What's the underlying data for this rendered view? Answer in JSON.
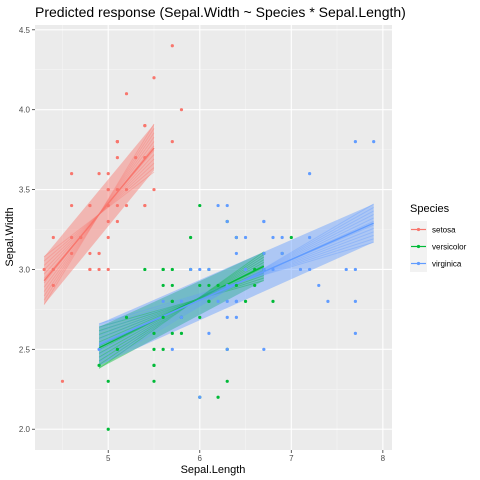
{
  "chart_data": {
    "type": "scatter",
    "title": "Predicted response (Sepal.Width ~ Species * Sepal.Length)",
    "xlabel": "Sepal.Length",
    "ylabel": "Sepal.Width",
    "xlim": [
      4.2,
      8.1
    ],
    "ylim": [
      1.87,
      4.53
    ],
    "x_ticks": [
      5,
      6,
      7,
      8
    ],
    "y_ticks": [
      2.0,
      2.5,
      3.0,
      3.5,
      4.0,
      4.5
    ],
    "x_tick_labels": [
      "5",
      "6",
      "7",
      "8"
    ],
    "y_tick_labels": [
      "2.0",
      "2.5",
      "3.0",
      "3.5",
      "4.0",
      "4.5"
    ],
    "grid": true,
    "legend": {
      "title": "Species",
      "position": "right"
    },
    "series": [
      {
        "name": "setosa",
        "color": "#F8766D",
        "fit": {
          "x": [
            4.3,
            5.5
          ],
          "y": [
            2.93,
            3.76
          ],
          "band_low": [
            2.78,
            3.62
          ],
          "band_high": [
            3.08,
            3.91
          ]
        },
        "points": [
          [
            5.1,
            3.5
          ],
          [
            4.9,
            3.0
          ],
          [
            4.7,
            3.2
          ],
          [
            4.6,
            3.1
          ],
          [
            5.0,
            3.6
          ],
          [
            5.4,
            3.9
          ],
          [
            4.6,
            3.4
          ],
          [
            5.0,
            3.4
          ],
          [
            4.4,
            2.9
          ],
          [
            4.9,
            3.1
          ],
          [
            5.4,
            3.7
          ],
          [
            4.8,
            3.4
          ],
          [
            4.8,
            3.0
          ],
          [
            4.3,
            3.0
          ],
          [
            5.8,
            4.0
          ],
          [
            5.7,
            4.4
          ],
          [
            5.4,
            3.9
          ],
          [
            5.1,
            3.5
          ],
          [
            5.7,
            3.8
          ],
          [
            5.1,
            3.8
          ],
          [
            5.4,
            3.4
          ],
          [
            5.1,
            3.7
          ],
          [
            4.6,
            3.6
          ],
          [
            5.1,
            3.3
          ],
          [
            4.8,
            3.4
          ],
          [
            5.0,
            3.0
          ],
          [
            5.0,
            3.4
          ],
          [
            5.2,
            3.5
          ],
          [
            5.2,
            3.4
          ],
          [
            4.7,
            3.2
          ],
          [
            4.8,
            3.1
          ],
          [
            5.4,
            3.4
          ],
          [
            5.2,
            4.1
          ],
          [
            5.5,
            4.2
          ],
          [
            4.9,
            3.1
          ],
          [
            5.0,
            3.2
          ],
          [
            5.5,
            3.5
          ],
          [
            4.9,
            3.6
          ],
          [
            4.4,
            3.0
          ],
          [
            5.1,
            3.4
          ],
          [
            5.0,
            3.5
          ],
          [
            4.5,
            2.3
          ],
          [
            4.4,
            3.2
          ],
          [
            5.0,
            3.5
          ],
          [
            5.1,
            3.8
          ],
          [
            4.8,
            3.0
          ],
          [
            5.1,
            3.8
          ],
          [
            4.6,
            3.2
          ],
          [
            5.3,
            3.7
          ],
          [
            5.0,
            3.3
          ]
        ]
      },
      {
        "name": "versicolor",
        "color": "#00BA38",
        "fit": {
          "x": [
            4.9,
            6.7
          ],
          "y": [
            2.51,
            3.02
          ],
          "band_low": [
            2.38,
            2.93
          ],
          "band_high": [
            2.64,
            3.11
          ]
        },
        "points": [
          [
            7.0,
            3.2
          ],
          [
            6.4,
            3.2
          ],
          [
            6.9,
            3.1
          ],
          [
            5.5,
            2.3
          ],
          [
            6.5,
            2.8
          ],
          [
            5.7,
            2.8
          ],
          [
            6.3,
            3.3
          ],
          [
            4.9,
            2.4
          ],
          [
            6.6,
            2.9
          ],
          [
            5.2,
            2.7
          ],
          [
            5.0,
            2.0
          ],
          [
            5.9,
            3.0
          ],
          [
            6.0,
            2.2
          ],
          [
            6.1,
            2.9
          ],
          [
            5.6,
            2.9
          ],
          [
            6.7,
            3.1
          ],
          [
            5.6,
            3.0
          ],
          [
            5.8,
            2.7
          ],
          [
            6.2,
            2.2
          ],
          [
            5.6,
            2.5
          ],
          [
            5.9,
            3.2
          ],
          [
            6.1,
            2.8
          ],
          [
            6.3,
            2.5
          ],
          [
            6.1,
            2.8
          ],
          [
            6.4,
            2.9
          ],
          [
            6.6,
            3.0
          ],
          [
            6.8,
            2.8
          ],
          [
            6.7,
            3.0
          ],
          [
            6.0,
            2.9
          ],
          [
            5.7,
            2.6
          ],
          [
            5.5,
            2.4
          ],
          [
            5.5,
            2.4
          ],
          [
            5.8,
            2.7
          ],
          [
            6.0,
            2.7
          ],
          [
            5.4,
            3.0
          ],
          [
            6.0,
            3.4
          ],
          [
            6.7,
            3.1
          ],
          [
            6.3,
            2.3
          ],
          [
            5.6,
            3.0
          ],
          [
            5.5,
            2.5
          ],
          [
            5.5,
            2.6
          ],
          [
            6.1,
            3.0
          ],
          [
            5.8,
            2.6
          ],
          [
            5.0,
            2.3
          ],
          [
            5.6,
            2.7
          ],
          [
            5.7,
            3.0
          ],
          [
            5.7,
            2.9
          ],
          [
            6.2,
            2.9
          ],
          [
            5.1,
            2.5
          ],
          [
            5.7,
            2.8
          ]
        ]
      },
      {
        "name": "virginica",
        "color": "#619CFF",
        "fit": {
          "x": [
            4.9,
            7.9
          ],
          "y": [
            2.53,
            3.29
          ],
          "band_low": [
            2.4,
            3.17
          ],
          "band_high": [
            2.66,
            3.41
          ]
        },
        "points": [
          [
            6.3,
            3.3
          ],
          [
            5.8,
            2.7
          ],
          [
            7.1,
            3.0
          ],
          [
            6.3,
            2.9
          ],
          [
            6.5,
            3.0
          ],
          [
            7.6,
            3.0
          ],
          [
            4.9,
            2.5
          ],
          [
            7.3,
            2.9
          ],
          [
            6.7,
            2.5
          ],
          [
            7.2,
            3.6
          ],
          [
            6.5,
            3.2
          ],
          [
            6.4,
            2.7
          ],
          [
            6.8,
            3.0
          ],
          [
            5.7,
            2.5
          ],
          [
            5.8,
            2.8
          ],
          [
            6.4,
            3.2
          ],
          [
            6.5,
            3.0
          ],
          [
            7.7,
            3.8
          ],
          [
            7.7,
            2.6
          ],
          [
            6.0,
            2.2
          ],
          [
            6.9,
            3.2
          ],
          [
            5.6,
            2.8
          ],
          [
            7.7,
            2.8
          ],
          [
            6.3,
            2.7
          ],
          [
            6.7,
            3.3
          ],
          [
            7.2,
            3.2
          ],
          [
            6.2,
            2.8
          ],
          [
            6.1,
            3.0
          ],
          [
            6.4,
            2.8
          ],
          [
            7.2,
            3.0
          ],
          [
            7.4,
            2.8
          ],
          [
            7.9,
            3.8
          ],
          [
            6.4,
            2.8
          ],
          [
            6.3,
            2.8
          ],
          [
            6.1,
            2.6
          ],
          [
            7.7,
            3.0
          ],
          [
            6.3,
            3.4
          ],
          [
            6.4,
            3.1
          ],
          [
            6.0,
            3.0
          ],
          [
            6.9,
            3.1
          ],
          [
            6.7,
            3.1
          ],
          [
            6.9,
            3.1
          ],
          [
            5.8,
            2.7
          ],
          [
            6.8,
            3.2
          ],
          [
            6.7,
            3.3
          ],
          [
            6.7,
            3.0
          ],
          [
            6.3,
            2.5
          ],
          [
            6.5,
            3.0
          ],
          [
            6.2,
            3.4
          ],
          [
            5.9,
            3.0
          ]
        ]
      }
    ]
  }
}
